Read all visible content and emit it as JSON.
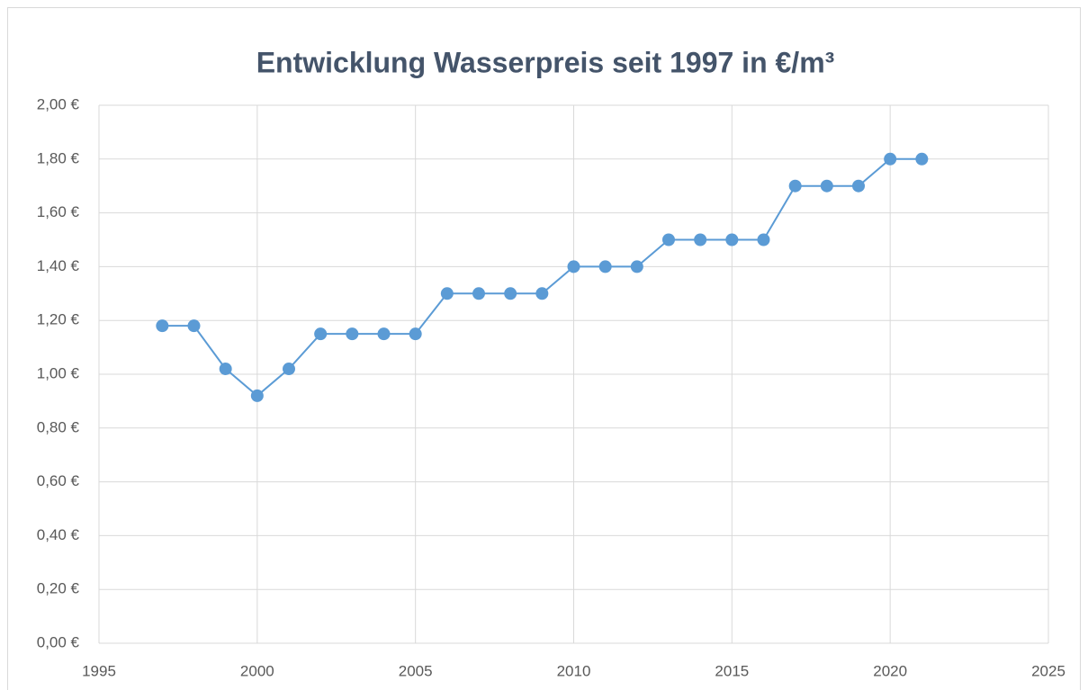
{
  "chart_data": {
    "type": "line",
    "title": "Entwicklung Wasserpreis seit 1997 in €/m³",
    "x": [
      1997,
      1998,
      1999,
      2000,
      2001,
      2002,
      2003,
      2004,
      2005,
      2006,
      2007,
      2008,
      2009,
      2010,
      2011,
      2012,
      2013,
      2014,
      2015,
      2016,
      2017,
      2018,
      2019,
      2020,
      2021
    ],
    "values": [
      1.18,
      1.18,
      1.02,
      0.92,
      1.02,
      1.15,
      1.15,
      1.15,
      1.15,
      1.3,
      1.3,
      1.3,
      1.3,
      1.4,
      1.4,
      1.4,
      1.5,
      1.5,
      1.5,
      1.5,
      1.7,
      1.7,
      1.7,
      1.8,
      1.8
    ],
    "color": "#5b9bd5",
    "xlim": [
      1995,
      2025
    ],
    "xticks": [
      1995,
      2000,
      2005,
      2010,
      2015,
      2020,
      2025
    ],
    "ylim": [
      0,
      2
    ],
    "yticks": [
      {
        "value": 0,
        "label": "0,00 €"
      },
      {
        "value": 0.2,
        "label": "0,20 €"
      },
      {
        "value": 0.4,
        "label": "0,40 €"
      },
      {
        "value": 0.6,
        "label": "0,60 €"
      },
      {
        "value": 0.8,
        "label": "0,80 €"
      },
      {
        "value": 1.0,
        "label": "1,00 €"
      },
      {
        "value": 1.2,
        "label": "1,20 €"
      },
      {
        "value": 1.4,
        "label": "1,40 €"
      },
      {
        "value": 1.6,
        "label": "1,60 €"
      },
      {
        "value": 1.8,
        "label": "1,80 €"
      },
      {
        "value": 2.0,
        "label": "2,00 €"
      }
    ],
    "grid": true
  }
}
